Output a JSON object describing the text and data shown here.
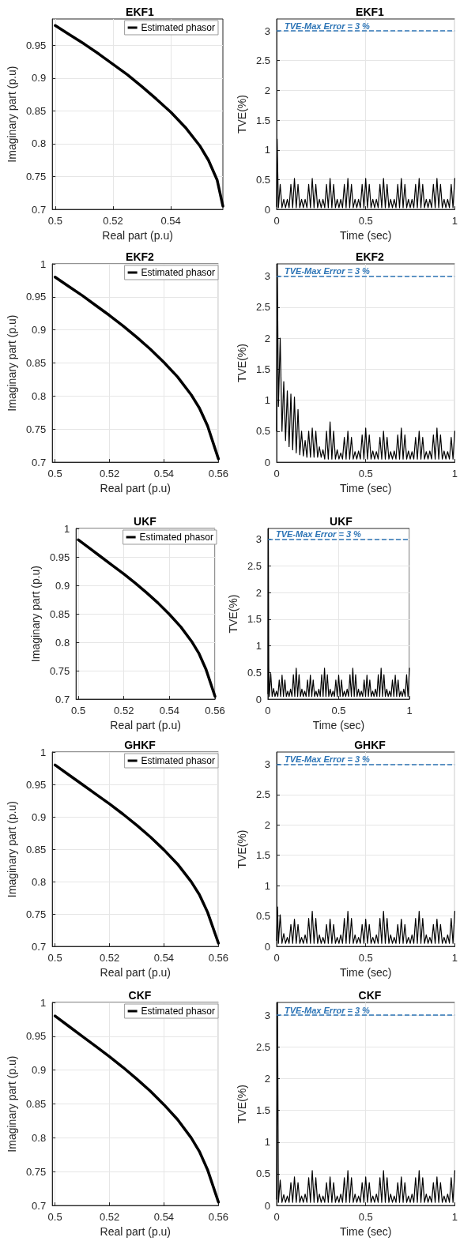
{
  "chart_data": [
    {
      "type": "line",
      "title": "EKF1",
      "xlabel": "Real part (p.u)",
      "ylabel": "Imaginary part (p.u)",
      "xlim": [
        0.499,
        0.558
      ],
      "xticks": [
        0.5,
        0.52,
        0.54
      ],
      "ylim": [
        0.7,
        0.99
      ],
      "yticks": [
        0.7,
        0.75,
        0.8,
        0.85,
        0.9,
        0.95
      ],
      "grid": true,
      "legend": "top right",
      "marker": "none",
      "x": [
        0.5,
        0.505,
        0.51,
        0.515,
        0.52,
        0.525,
        0.53,
        0.535,
        0.54,
        0.545,
        0.55,
        0.553,
        0.556,
        0.558
      ],
      "series": [
        {
          "name": "Estimated phasor",
          "color": "#000000",
          "values": [
            0.98,
            0.966,
            0.952,
            0.937,
            0.921,
            0.905,
            0.887,
            0.868,
            0.848,
            0.825,
            0.797,
            0.775,
            0.745,
            0.705
          ]
        }
      ]
    },
    {
      "type": "line",
      "title": "EKF1",
      "xlabel": "Time (sec)",
      "ylabel": "TVE(%)",
      "xlim": [
        0,
        1
      ],
      "xticks": [
        0,
        0.5,
        1
      ],
      "ylim": [
        0,
        3.2
      ],
      "yticks": [
        0,
        0.5,
        1,
        1.5,
        2,
        2.5,
        3
      ],
      "grid": true,
      "marker": "none",
      "ref_lines": [
        {
          "axis": "y",
          "value": 3,
          "label": "TVE-Max Error = 3 %",
          "color": "#2e75b6",
          "line_style": "dashed"
        }
      ],
      "x": [
        0,
        0.003,
        0.01,
        0.02,
        0.03,
        0.04,
        0.05,
        0.06,
        0.07,
        0.08,
        0.09,
        0.1,
        0.11,
        0.12,
        0.13,
        0.14,
        0.15,
        0.16,
        0.17,
        0.18,
        0.19,
        0.2,
        0.21,
        0.22,
        0.23,
        0.24,
        0.25,
        0.26,
        0.27,
        0.28,
        0.29,
        0.3,
        0.31,
        0.32,
        0.33,
        0.34,
        0.35,
        0.36,
        0.37,
        0.38,
        0.39,
        0.4,
        0.41,
        0.42,
        0.43,
        0.44,
        0.45,
        0.46,
        0.47,
        0.48,
        0.49,
        0.5,
        0.51,
        0.52,
        0.53,
        0.54,
        0.55,
        0.56,
        0.57,
        0.58,
        0.59,
        0.6,
        0.61,
        0.62,
        0.63,
        0.64,
        0.65,
        0.66,
        0.67,
        0.68,
        0.69,
        0.7,
        0.71,
        0.72,
        0.73,
        0.74,
        0.75,
        0.76,
        0.77,
        0.78,
        0.79,
        0.8,
        0.81,
        0.82,
        0.83,
        0.84,
        0.85,
        0.86,
        0.87,
        0.88,
        0.89,
        0.9,
        0.91,
        0.92,
        0.93,
        0.94,
        0.95,
        0.96,
        0.97,
        0.98,
        0.99,
        1
      ],
      "series": [
        {
          "color": "#000000",
          "values": [
            0.05,
            1.18,
            0.03,
            0.42,
            0.03,
            0.17,
            0.03,
            0.17,
            0.03,
            0.42,
            0.03,
            0.52,
            0.03,
            0.42,
            0.03,
            0.17,
            0.03,
            0.17,
            0.03,
            0.42,
            0.03,
            0.52,
            0.03,
            0.42,
            0.03,
            0.17,
            0.03,
            0.17,
            0.03,
            0.42,
            0.03,
            0.52,
            0.03,
            0.42,
            0.03,
            0.17,
            0.03,
            0.17,
            0.03,
            0.42,
            0.03,
            0.52,
            0.03,
            0.42,
            0.03,
            0.17,
            0.03,
            0.17,
            0.03,
            0.42,
            0.03,
            0.52,
            0.03,
            0.42,
            0.03,
            0.17,
            0.03,
            0.17,
            0.03,
            0.42,
            0.03,
            0.52,
            0.03,
            0.42,
            0.03,
            0.17,
            0.03,
            0.17,
            0.03,
            0.42,
            0.03,
            0.52,
            0.03,
            0.42,
            0.03,
            0.17,
            0.03,
            0.17,
            0.03,
            0.42,
            0.03,
            0.52,
            0.03,
            0.42,
            0.03,
            0.17,
            0.03,
            0.17,
            0.03,
            0.42,
            0.03,
            0.52,
            0.03,
            0.42,
            0.03,
            0.17,
            0.03,
            0.17,
            0.03,
            0.42,
            0.03,
            0.52
          ]
        }
      ]
    },
    {
      "type": "line",
      "title": "EKF2",
      "xlabel": "Real part (p.u)",
      "ylabel": "Imaginary part (p.u)",
      "xlim": [
        0.499,
        0.56
      ],
      "xticks": [
        0.5,
        0.52,
        0.54,
        0.56
      ],
      "ylim": [
        0.7,
        1
      ],
      "yticks": [
        0.7,
        0.75,
        0.8,
        0.85,
        0.9,
        0.95,
        1
      ],
      "grid": true,
      "legend": "top right",
      "marker": "none",
      "x": [
        0.5,
        0.505,
        0.51,
        0.515,
        0.52,
        0.525,
        0.53,
        0.535,
        0.54,
        0.545,
        0.55,
        0.553,
        0.556,
        0.56
      ],
      "series": [
        {
          "name": "Estimated phasor",
          "color": "#000000",
          "values": [
            0.98,
            0.966,
            0.952,
            0.937,
            0.922,
            0.906,
            0.889,
            0.871,
            0.851,
            0.829,
            0.802,
            0.782,
            0.755,
            0.705
          ]
        }
      ]
    },
    {
      "type": "line",
      "title": "EKF2",
      "xlabel": "Time (sec)",
      "ylabel": "TVE(%)",
      "xlim": [
        0,
        1
      ],
      "xticks": [
        0,
        0.5,
        1
      ],
      "ylim": [
        0,
        3.2
      ],
      "yticks": [
        0,
        0.5,
        1,
        1.5,
        2,
        2.5,
        3
      ],
      "grid": true,
      "marker": "none",
      "ref_lines": [
        {
          "axis": "y",
          "value": 3,
          "label": "TVE-Max Error = 3 %",
          "color": "#2e75b6",
          "line_style": "dashed"
        }
      ],
      "x": [
        0,
        0.004,
        0.01,
        0.02,
        0.03,
        0.04,
        0.05,
        0.06,
        0.07,
        0.08,
        0.09,
        0.1,
        0.11,
        0.12,
        0.13,
        0.14,
        0.15,
        0.16,
        0.17,
        0.18,
        0.19,
        0.2,
        0.21,
        0.22,
        0.23,
        0.24,
        0.25,
        0.26,
        0.27,
        0.28,
        0.29,
        0.3,
        0.31,
        0.32,
        0.33,
        0.34,
        0.35,
        0.36,
        0.37,
        0.38,
        0.39,
        0.4,
        0.41,
        0.42,
        0.43,
        0.44,
        0.45,
        0.46,
        0.47,
        0.48,
        0.49,
        0.5,
        0.51,
        0.52,
        0.53,
        0.54,
        0.55,
        0.56,
        0.57,
        0.58,
        0.59,
        0.6,
        0.61,
        0.62,
        0.63,
        0.64,
        0.65,
        0.66,
        0.67,
        0.68,
        0.69,
        0.7,
        0.71,
        0.72,
        0.73,
        0.74,
        0.75,
        0.76,
        0.77,
        0.78,
        0.79,
        0.8,
        0.81,
        0.82,
        0.83,
        0.84,
        0.85,
        0.86,
        0.87,
        0.88,
        0.89,
        0.9,
        0.91,
        0.92,
        0.93,
        0.94,
        0.95,
        0.96,
        0.97,
        0.98,
        0.99,
        1
      ],
      "series": [
        {
          "color": "#000000",
          "values": [
            0.5,
            3.2,
            0.9,
            2.0,
            0.5,
            1.3,
            0.35,
            1.15,
            0.25,
            1.1,
            0.2,
            1.05,
            0.15,
            0.85,
            0.12,
            0.5,
            0.1,
            0.35,
            0.08,
            0.5,
            0.08,
            0.55,
            0.08,
            0.5,
            0.08,
            0.25,
            0.08,
            0.2,
            0.05,
            0.5,
            0.05,
            0.65,
            0.05,
            0.5,
            0.05,
            0.2,
            0.05,
            0.15,
            0.05,
            0.4,
            0.05,
            0.5,
            0.05,
            0.4,
            0.05,
            0.17,
            0.05,
            0.18,
            0.05,
            0.44,
            0.05,
            0.55,
            0.05,
            0.44,
            0.05,
            0.18,
            0.05,
            0.17,
            0.05,
            0.4,
            0.05,
            0.5,
            0.05,
            0.4,
            0.05,
            0.17,
            0.05,
            0.18,
            0.05,
            0.44,
            0.05,
            0.55,
            0.05,
            0.44,
            0.05,
            0.18,
            0.05,
            0.17,
            0.05,
            0.4,
            0.05,
            0.5,
            0.05,
            0.4,
            0.05,
            0.17,
            0.05,
            0.18,
            0.05,
            0.44,
            0.05,
            0.55,
            0.05,
            0.44,
            0.05,
            0.18,
            0.05,
            0.17,
            0.05,
            0.4,
            0.05,
            0.5
          ]
        }
      ]
    },
    {
      "type": "line",
      "title": "UKF",
      "xlabel": "Real part (p.u)",
      "ylabel": "Imaginary part (p.u)",
      "xlim": [
        0.499,
        0.56
      ],
      "xticks": [
        0.5,
        0.52,
        0.54,
        0.56
      ],
      "ylim": [
        0.7,
        1
      ],
      "yticks": [
        0.7,
        0.75,
        0.8,
        0.85,
        0.9,
        0.95,
        1
      ],
      "grid": true,
      "legend": "top right",
      "marker": "none",
      "x": [
        0.5,
        0.505,
        0.51,
        0.515,
        0.52,
        0.525,
        0.53,
        0.535,
        0.54,
        0.545,
        0.55,
        0.553,
        0.556,
        0.56
      ],
      "series": [
        {
          "name": "Estimated phasor",
          "color": "#000000",
          "values": [
            0.98,
            0.965,
            0.95,
            0.935,
            0.92,
            0.904,
            0.887,
            0.869,
            0.849,
            0.827,
            0.8,
            0.78,
            0.753,
            0.705
          ]
        }
      ]
    },
    {
      "type": "line",
      "title": "UKF",
      "xlabel": "Time (sec)",
      "ylabel": "TVE(%)",
      "xlim": [
        0,
        1
      ],
      "xticks": [
        0,
        0.5,
        1
      ],
      "ylim": [
        0,
        3.2
      ],
      "yticks": [
        0,
        0.5,
        1,
        1.5,
        2,
        2.5,
        3
      ],
      "grid": true,
      "marker": "none",
      "ref_lines": [
        {
          "axis": "y",
          "value": 3,
          "label": "TVE-Max Error = 3 %",
          "color": "#2e75b6",
          "line_style": "dashed"
        }
      ],
      "x": [
        0,
        0.003,
        0.006,
        0.01,
        0.02,
        0.03,
        0.04,
        0.05,
        0.06,
        0.07,
        0.08,
        0.09,
        0.1,
        0.11,
        0.12,
        0.13,
        0.14,
        0.15,
        0.16,
        0.17,
        0.18,
        0.19,
        0.2,
        0.21,
        0.22,
        0.23,
        0.24,
        0.25,
        0.26,
        0.27,
        0.28,
        0.29,
        0.3,
        0.31,
        0.32,
        0.33,
        0.34,
        0.35,
        0.36,
        0.37,
        0.38,
        0.39,
        0.4,
        0.41,
        0.42,
        0.43,
        0.44,
        0.45,
        0.46,
        0.47,
        0.48,
        0.49,
        0.5,
        0.51,
        0.52,
        0.53,
        0.54,
        0.55,
        0.56,
        0.57,
        0.58,
        0.59,
        0.6,
        0.61,
        0.62,
        0.63,
        0.64,
        0.65,
        0.66,
        0.67,
        0.68,
        0.69,
        0.7,
        0.71,
        0.72,
        0.73,
        0.74,
        0.75,
        0.76,
        0.77,
        0.78,
        0.79,
        0.8,
        0.81,
        0.82,
        0.83,
        0.84,
        0.85,
        0.86,
        0.87,
        0.88,
        0.89,
        0.9,
        0.91,
        0.92,
        0.93,
        0.94,
        0.95,
        0.96,
        0.97,
        0.98,
        0.99,
        1
      ],
      "series": [
        {
          "color": "#000000",
          "values": [
            0.1,
            3.2,
            0.6,
            0.05,
            0.48,
            0.05,
            0.2,
            0.05,
            0.15,
            0.05,
            0.36,
            0.05,
            0.45,
            0.05,
            0.36,
            0.05,
            0.15,
            0.05,
            0.19,
            0.05,
            0.46,
            0.05,
            0.58,
            0.05,
            0.46,
            0.05,
            0.19,
            0.05,
            0.15,
            0.05,
            0.36,
            0.05,
            0.45,
            0.05,
            0.36,
            0.05,
            0.15,
            0.05,
            0.19,
            0.05,
            0.46,
            0.05,
            0.58,
            0.05,
            0.46,
            0.05,
            0.19,
            0.05,
            0.15,
            0.05,
            0.36,
            0.05,
            0.45,
            0.05,
            0.36,
            0.05,
            0.15,
            0.05,
            0.19,
            0.05,
            0.46,
            0.05,
            0.58,
            0.05,
            0.46,
            0.05,
            0.19,
            0.05,
            0.15,
            0.05,
            0.36,
            0.05,
            0.45,
            0.05,
            0.36,
            0.05,
            0.15,
            0.05,
            0.19,
            0.05,
            0.46,
            0.05,
            0.58,
            0.05,
            0.46,
            0.05,
            0.19,
            0.05,
            0.15,
            0.05,
            0.36,
            0.05,
            0.45,
            0.05,
            0.36,
            0.05,
            0.15,
            0.05,
            0.19,
            0.05,
            0.46,
            0.05,
            0.58
          ]
        }
      ]
    },
    {
      "type": "line",
      "title": "GHKF",
      "xlabel": "Real part (p.u)",
      "ylabel": "Imaginary part (p.u)",
      "xlim": [
        0.499,
        0.56
      ],
      "xticks": [
        0.5,
        0.52,
        0.54,
        0.56
      ],
      "ylim": [
        0.7,
        1
      ],
      "yticks": [
        0.7,
        0.75,
        0.8,
        0.85,
        0.9,
        0.95,
        1
      ],
      "grid": true,
      "legend": "top right",
      "marker": "none",
      "x": [
        0.5,
        0.505,
        0.51,
        0.515,
        0.52,
        0.525,
        0.53,
        0.535,
        0.54,
        0.545,
        0.55,
        0.553,
        0.556,
        0.56
      ],
      "series": [
        {
          "name": "Estimated phasor",
          "color": "#000000",
          "values": [
            0.98,
            0.965,
            0.95,
            0.935,
            0.92,
            0.904,
            0.887,
            0.869,
            0.849,
            0.827,
            0.8,
            0.78,
            0.753,
            0.705
          ]
        }
      ]
    },
    {
      "type": "line",
      "title": "GHKF",
      "xlabel": "Time (sec)",
      "ylabel": "TVE(%)",
      "xlim": [
        0,
        1
      ],
      "xticks": [
        0,
        0.5,
        1
      ],
      "ylim": [
        0,
        3.2
      ],
      "yticks": [
        0,
        0.5,
        1,
        1.5,
        2,
        2.5,
        3
      ],
      "grid": true,
      "marker": "none",
      "ref_lines": [
        {
          "axis": "y",
          "value": 3,
          "label": "TVE-Max Error = 3 %",
          "color": "#2e75b6",
          "line_style": "dashed"
        }
      ],
      "x": [
        0,
        0.005,
        0.01,
        0.02,
        0.03,
        0.04,
        0.05,
        0.06,
        0.07,
        0.08,
        0.09,
        0.1,
        0.11,
        0.12,
        0.13,
        0.14,
        0.15,
        0.16,
        0.17,
        0.18,
        0.19,
        0.2,
        0.21,
        0.22,
        0.23,
        0.24,
        0.25,
        0.26,
        0.27,
        0.28,
        0.29,
        0.3,
        0.31,
        0.32,
        0.33,
        0.34,
        0.35,
        0.36,
        0.37,
        0.38,
        0.39,
        0.4,
        0.41,
        0.42,
        0.43,
        0.44,
        0.45,
        0.46,
        0.47,
        0.48,
        0.49,
        0.5,
        0.51,
        0.52,
        0.53,
        0.54,
        0.55,
        0.56,
        0.57,
        0.58,
        0.59,
        0.6,
        0.61,
        0.62,
        0.63,
        0.64,
        0.65,
        0.66,
        0.67,
        0.68,
        0.69,
        0.7,
        0.71,
        0.72,
        0.73,
        0.74,
        0.75,
        0.76,
        0.77,
        0.78,
        0.79,
        0.8,
        0.81,
        0.82,
        0.83,
        0.84,
        0.85,
        0.86,
        0.87,
        0.88,
        0.89,
        0.9,
        0.91,
        0.92,
        0.93,
        0.94,
        0.95,
        0.96,
        0.97,
        0.98,
        0.99,
        1
      ],
      "series": [
        {
          "color": "#000000",
          "values": [
            0.1,
            0.65,
            0.05,
            0.52,
            0.05,
            0.21,
            0.05,
            0.15,
            0.05,
            0.36,
            0.05,
            0.45,
            0.05,
            0.36,
            0.05,
            0.15,
            0.05,
            0.19,
            0.05,
            0.46,
            0.05,
            0.58,
            0.05,
            0.46,
            0.05,
            0.19,
            0.05,
            0.15,
            0.05,
            0.36,
            0.05,
            0.45,
            0.05,
            0.36,
            0.05,
            0.15,
            0.05,
            0.19,
            0.05,
            0.46,
            0.05,
            0.58,
            0.05,
            0.46,
            0.05,
            0.19,
            0.05,
            0.15,
            0.05,
            0.36,
            0.05,
            0.45,
            0.05,
            0.36,
            0.05,
            0.15,
            0.05,
            0.19,
            0.05,
            0.46,
            0.05,
            0.58,
            0.05,
            0.46,
            0.05,
            0.19,
            0.05,
            0.15,
            0.05,
            0.36,
            0.05,
            0.45,
            0.05,
            0.36,
            0.05,
            0.15,
            0.05,
            0.19,
            0.05,
            0.46,
            0.05,
            0.58,
            0.05,
            0.46,
            0.05,
            0.19,
            0.05,
            0.15,
            0.05,
            0.36,
            0.05,
            0.45,
            0.05,
            0.36,
            0.05,
            0.15,
            0.05,
            0.19,
            0.05,
            0.46,
            0.05,
            0.58
          ]
        }
      ]
    },
    {
      "type": "line",
      "title": "CKF",
      "xlabel": "Real part (p.u)",
      "ylabel": "Imaginary part (p.u)",
      "xlim": [
        0.499,
        0.56
      ],
      "xticks": [
        0.5,
        0.52,
        0.54,
        0.56
      ],
      "ylim": [
        0.7,
        1
      ],
      "yticks": [
        0.7,
        0.75,
        0.8,
        0.85,
        0.9,
        0.95,
        1
      ],
      "grid": true,
      "legend": "top right",
      "marker": "none",
      "x": [
        0.5,
        0.505,
        0.51,
        0.515,
        0.52,
        0.525,
        0.53,
        0.535,
        0.54,
        0.545,
        0.55,
        0.553,
        0.556,
        0.56
      ],
      "series": [
        {
          "name": "Estimated phasor",
          "color": "#000000",
          "values": [
            0.98,
            0.965,
            0.95,
            0.935,
            0.92,
            0.904,
            0.887,
            0.869,
            0.849,
            0.827,
            0.8,
            0.78,
            0.753,
            0.705
          ]
        }
      ]
    },
    {
      "type": "line",
      "title": "CKF",
      "xlabel": "Time (sec)",
      "ylabel": "TVE(%)",
      "xlim": [
        0,
        1
      ],
      "xticks": [
        0,
        0.5,
        1
      ],
      "ylim": [
        0,
        3.2
      ],
      "yticks": [
        0,
        0.5,
        1,
        1.5,
        2,
        2.5,
        3
      ],
      "grid": true,
      "marker": "none",
      "ref_lines": [
        {
          "axis": "y",
          "value": 3,
          "label": "TVE-Max Error = 3 %",
          "color": "#2e75b6",
          "line_style": "dashed"
        }
      ],
      "x": [
        0,
        0.005,
        0.01,
        0.02,
        0.03,
        0.04,
        0.05,
        0.06,
        0.07,
        0.08,
        0.09,
        0.1,
        0.11,
        0.12,
        0.13,
        0.14,
        0.15,
        0.16,
        0.17,
        0.18,
        0.19,
        0.2,
        0.21,
        0.22,
        0.23,
        0.24,
        0.25,
        0.26,
        0.27,
        0.28,
        0.29,
        0.3,
        0.31,
        0.32,
        0.33,
        0.34,
        0.35,
        0.36,
        0.37,
        0.38,
        0.39,
        0.4,
        0.41,
        0.42,
        0.43,
        0.44,
        0.45,
        0.46,
        0.47,
        0.48,
        0.49,
        0.5,
        0.51,
        0.52,
        0.53,
        0.54,
        0.55,
        0.56,
        0.57,
        0.58,
        0.59,
        0.6,
        0.61,
        0.62,
        0.63,
        0.64,
        0.65,
        0.66,
        0.67,
        0.68,
        0.69,
        0.7,
        0.71,
        0.72,
        0.73,
        0.74,
        0.75,
        0.76,
        0.77,
        0.78,
        0.79,
        0.8,
        0.81,
        0.82,
        0.83,
        0.84,
        0.85,
        0.86,
        0.87,
        0.88,
        0.89,
        0.9,
        0.91,
        0.92,
        0.93,
        0.94,
        0.95,
        0.96,
        0.97,
        0.98,
        0.99,
        1
      ],
      "series": [
        {
          "color": "#000000",
          "values": [
            0.1,
            3.2,
            0.05,
            0.4,
            0.05,
            0.17,
            0.05,
            0.15,
            0.05,
            0.36,
            0.05,
            0.45,
            0.05,
            0.36,
            0.05,
            0.15,
            0.05,
            0.18,
            0.05,
            0.44,
            0.05,
            0.55,
            0.05,
            0.44,
            0.05,
            0.18,
            0.05,
            0.15,
            0.05,
            0.36,
            0.05,
            0.45,
            0.05,
            0.36,
            0.05,
            0.15,
            0.05,
            0.18,
            0.05,
            0.44,
            0.05,
            0.55,
            0.05,
            0.44,
            0.05,
            0.18,
            0.05,
            0.15,
            0.05,
            0.36,
            0.05,
            0.45,
            0.05,
            0.36,
            0.05,
            0.15,
            0.05,
            0.18,
            0.05,
            0.44,
            0.05,
            0.55,
            0.05,
            0.44,
            0.05,
            0.18,
            0.05,
            0.15,
            0.05,
            0.36,
            0.05,
            0.45,
            0.05,
            0.36,
            0.05,
            0.15,
            0.05,
            0.18,
            0.05,
            0.44,
            0.05,
            0.55,
            0.05,
            0.44,
            0.05,
            0.18,
            0.05,
            0.15,
            0.05,
            0.36,
            0.05,
            0.45,
            0.05,
            0.36,
            0.05,
            0.15,
            0.05,
            0.18,
            0.05,
            0.44,
            0.05,
            0.55
          ]
        }
      ]
    }
  ]
}
